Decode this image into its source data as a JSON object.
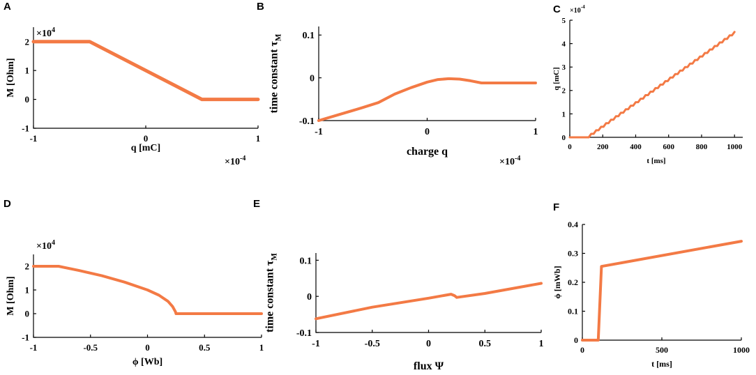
{
  "colors": {
    "curve": "#F37A45",
    "axis": "#000000"
  },
  "chart_data": [
    {
      "id": "A",
      "letter": "A",
      "type": "line",
      "xlabel": "q [mC]",
      "ylabel": "M [Ohm]",
      "x_exponent": "×10",
      "x_exponent_power": "-4",
      "y_exponent": "×10",
      "y_exponent_power": "4",
      "xlim": [
        -1,
        1
      ],
      "ylim": [
        -1,
        2.5
      ],
      "xticks": [
        -1,
        0,
        1
      ],
      "xtick_labels": [
        "-1",
        "0",
        "1"
      ],
      "yticks": [
        -1,
        0,
        1,
        2
      ],
      "ytick_labels": [
        "-1",
        "0",
        "1",
        "2"
      ],
      "x": [
        -1,
        -0.5,
        0.5,
        1
      ],
      "y": [
        2,
        2,
        0,
        0
      ]
    },
    {
      "id": "B",
      "letter": "B",
      "type": "line",
      "xlabel": "charge q",
      "ylabel": "time constant τ",
      "ylabel_sub": "M",
      "x_exponent": "×10",
      "x_exponent_power": "-4",
      "xlim": [
        -1,
        1
      ],
      "ylim": [
        -0.1,
        0.12
      ],
      "xticks": [
        -1,
        0,
        1
      ],
      "xtick_labels": [
        "-1",
        "0",
        "1"
      ],
      "yticks": [
        -0.1,
        0,
        0.1
      ],
      "ytick_labels": [
        "-0.1",
        "0",
        "0.1"
      ],
      "x": [
        -1,
        -0.8,
        -0.6,
        -0.45,
        -0.3,
        -0.15,
        0,
        0.1,
        0.2,
        0.3,
        0.4,
        0.5,
        1
      ],
      "y": [
        -0.1,
        -0.085,
        -0.07,
        -0.058,
        -0.038,
        -0.023,
        -0.01,
        -0.004,
        -0.002,
        -0.003,
        -0.007,
        -0.012,
        -0.012
      ]
    },
    {
      "id": "C",
      "letter": "C",
      "type": "line",
      "xlabel": "t [ms]",
      "ylabel": "q [mC]",
      "y_exponent": "×10",
      "y_exponent_power": "-4",
      "xlim": [
        0,
        1050
      ],
      "ylim": [
        0,
        5
      ],
      "xticks": [
        0,
        200,
        400,
        600,
        800,
        1000
      ],
      "xtick_labels": [
        "0",
        "200",
        "400",
        "600",
        "800",
        "1000"
      ],
      "yticks": [
        0,
        1,
        2,
        3,
        4,
        5
      ],
      "ytick_labels": [
        "0",
        "1",
        "2",
        "3",
        "4",
        "5"
      ],
      "x": [
        0,
        100,
        1000
      ],
      "y": [
        0,
        0,
        4.5
      ],
      "staircase_step_ms": 30
    },
    {
      "id": "D",
      "letter": "D",
      "type": "line",
      "xlabel": "ϕ [Wb]",
      "ylabel": "M [Ohm]",
      "y_exponent": "×10",
      "y_exponent_power": "4",
      "xlim": [
        -1,
        1
      ],
      "ylim": [
        -1,
        2.5
      ],
      "xticks": [
        -1,
        -0.5,
        0,
        0.5,
        1
      ],
      "xtick_labels": [
        "-1",
        "-0.5",
        "0",
        "0.5",
        "1"
      ],
      "yticks": [
        -1,
        0,
        1,
        2
      ],
      "ytick_labels": [
        "-1",
        "0",
        "1",
        "2"
      ],
      "x": [
        -1,
        -0.78,
        -0.6,
        -0.4,
        -0.2,
        0,
        0.1,
        0.18,
        0.22,
        0.245,
        0.25,
        1
      ],
      "y": [
        2,
        2,
        1.82,
        1.6,
        1.33,
        1.0,
        0.78,
        0.52,
        0.3,
        0.08,
        0,
        0
      ]
    },
    {
      "id": "E",
      "letter": "E",
      "type": "line",
      "xlabel": "flux Ψ",
      "ylabel": "time constant τ",
      "ylabel_sub": "M",
      "xlim": [
        -1,
        1
      ],
      "ylim": [
        -0.1,
        0.12
      ],
      "xticks": [
        -1,
        -0.5,
        0,
        0.5,
        1
      ],
      "xtick_labels": [
        "-1",
        "-0.5",
        "0",
        "0.5",
        "1"
      ],
      "yticks": [
        -0.1,
        0,
        0.1
      ],
      "ytick_labels": [
        "-0.1",
        "0",
        "0.1"
      ],
      "x": [
        -1,
        -0.5,
        0,
        0.2,
        0.23,
        0.25,
        0.5,
        1
      ],
      "y": [
        -0.062,
        -0.03,
        -0.005,
        0.006,
        0.002,
        -0.003,
        0.008,
        0.036
      ]
    },
    {
      "id": "F",
      "letter": "F",
      "type": "line",
      "xlabel": "t [ms]",
      "ylabel": "ϕ [mWb]",
      "xlim": [
        0,
        1000
      ],
      "ylim": [
        0,
        0.4
      ],
      "xticks": [
        0,
        500,
        1000
      ],
      "xtick_labels": [
        "0",
        "500",
        "1000"
      ],
      "yticks": [
        0,
        0.1,
        0.2,
        0.3,
        0.4
      ],
      "ytick_labels": [
        "0",
        "0.1",
        "0.2",
        "0.3",
        "0.4"
      ],
      "x": [
        0,
        100,
        120,
        1000
      ],
      "y": [
        0,
        0,
        0.255,
        0.342
      ]
    }
  ]
}
